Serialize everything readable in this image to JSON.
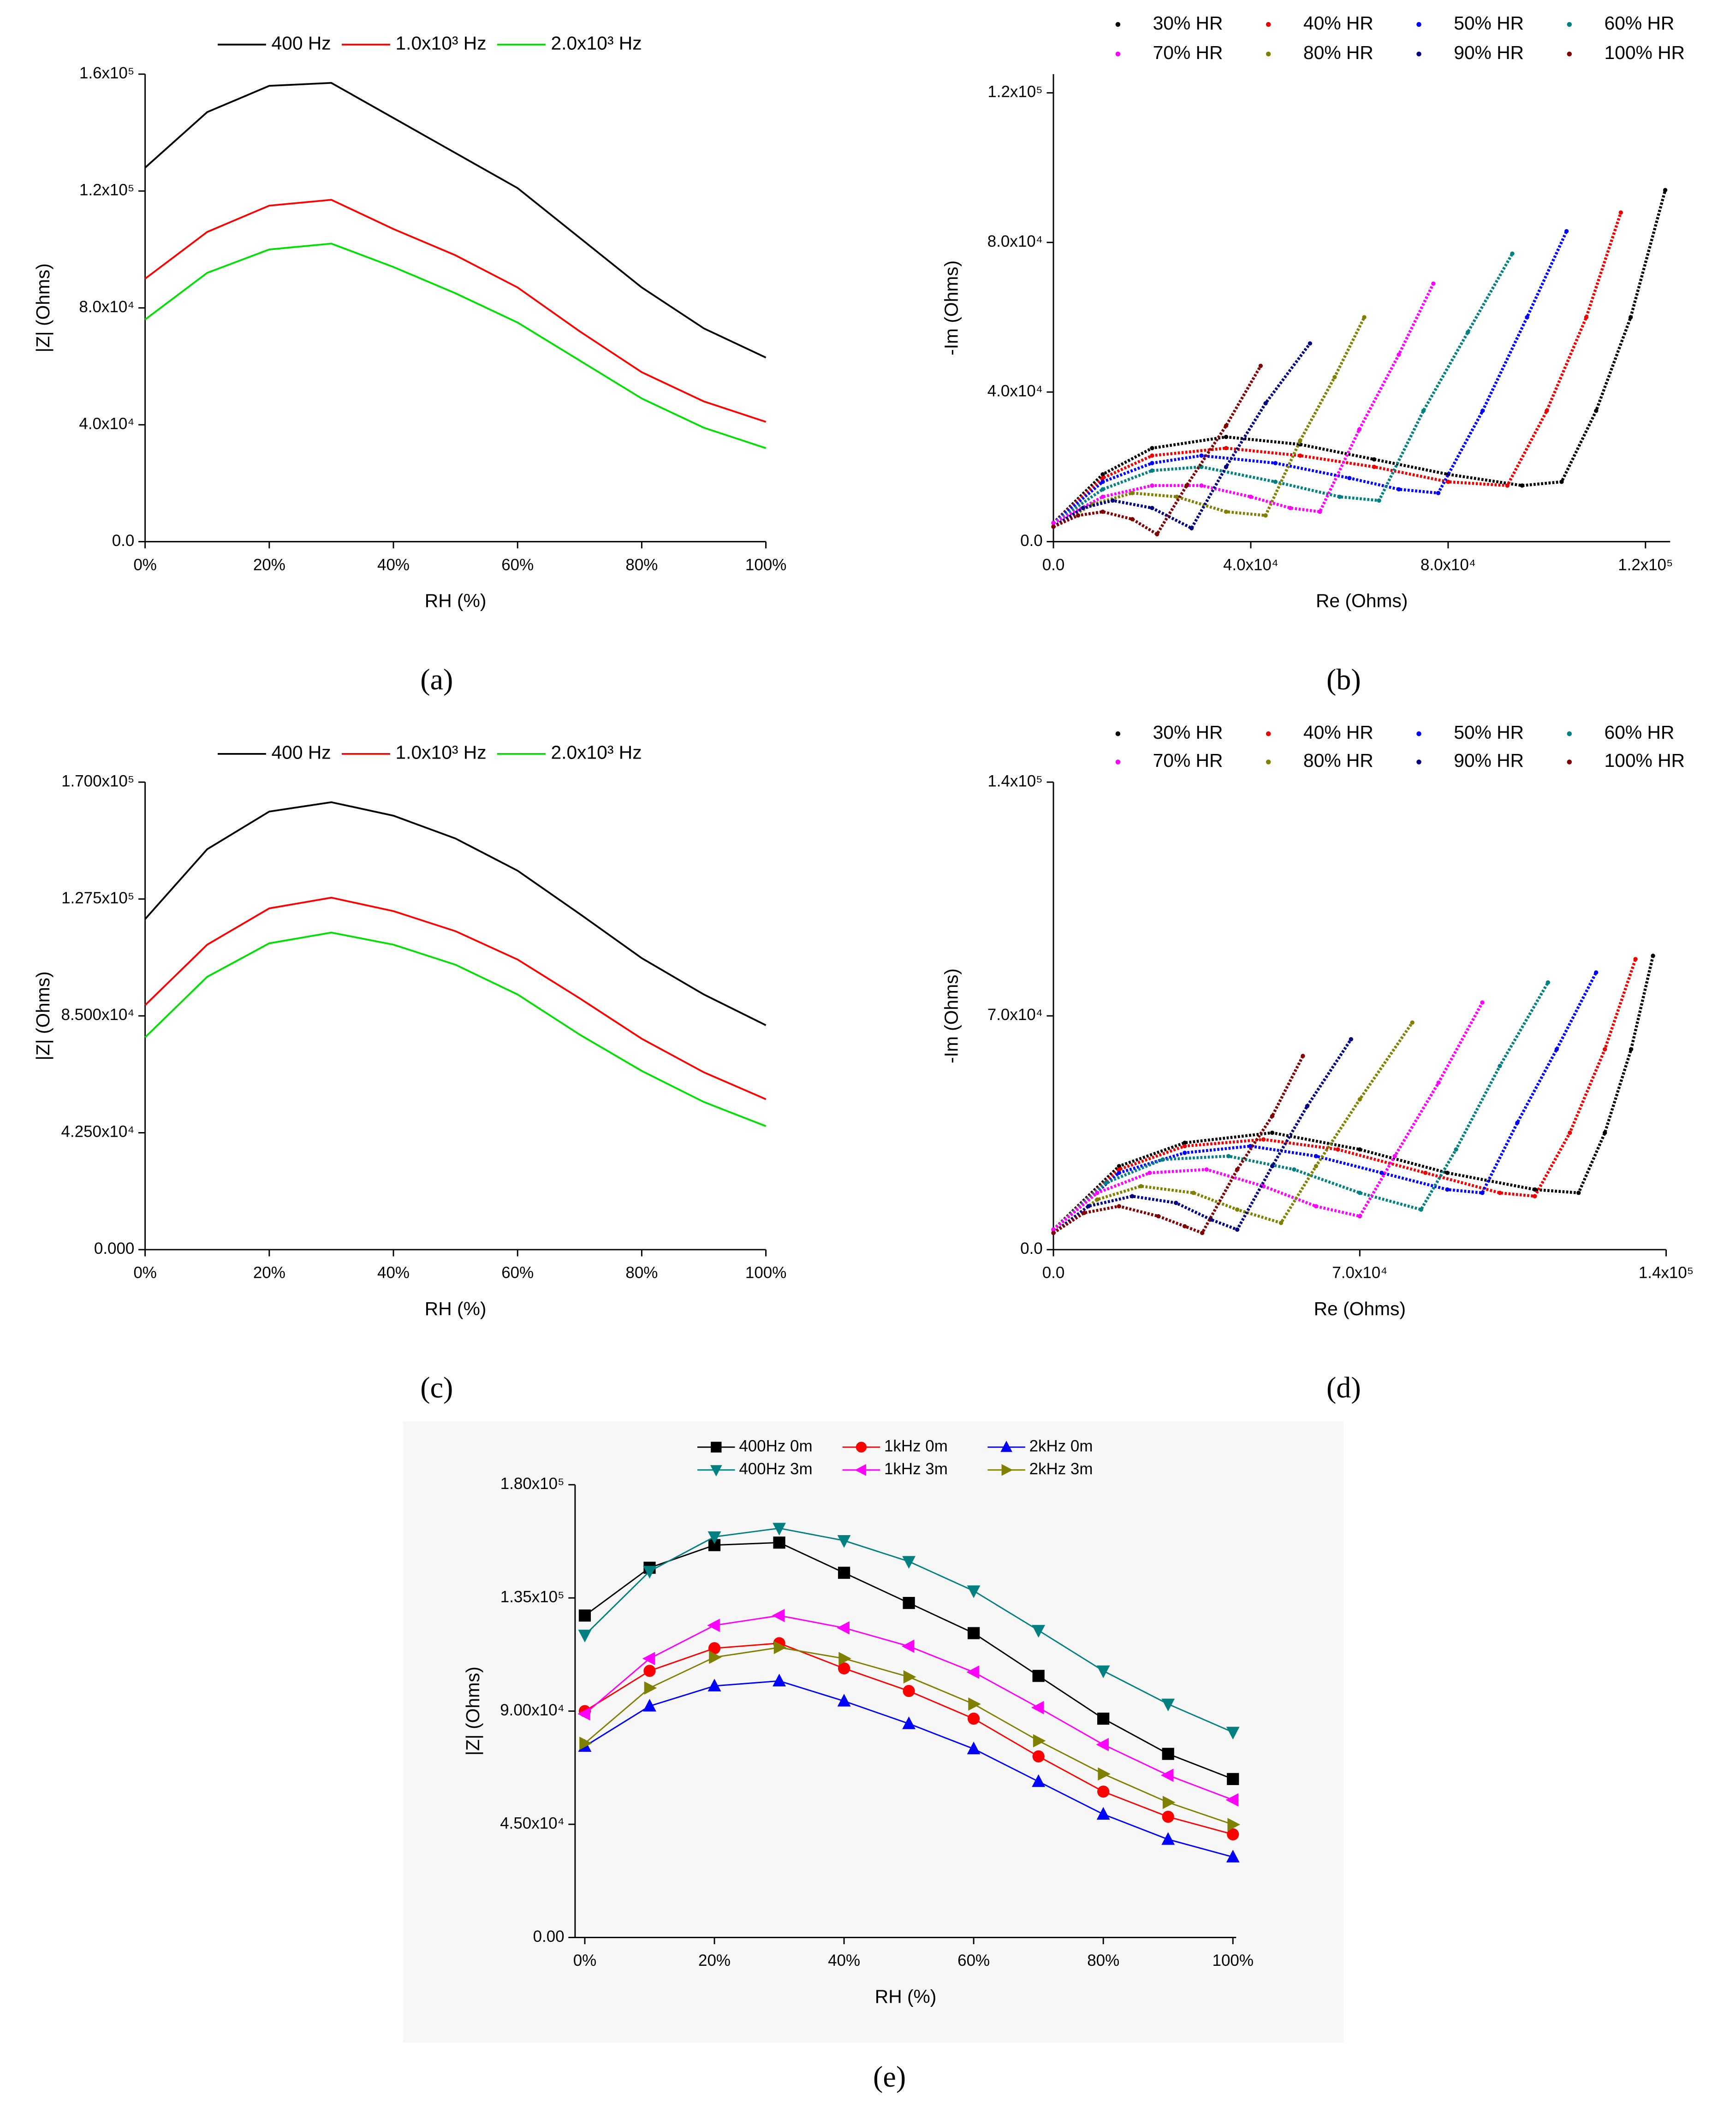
{
  "chart_data": [
    {
      "type": "line",
      "caption": "(a)",
      "x_label": "RH (%)",
      "y_label": "|Z| (Ohms)",
      "x": [
        0,
        10,
        20,
        30,
        40,
        50,
        60,
        70,
        80,
        90,
        100
      ],
      "xlim": [
        0,
        100
      ],
      "ylim": [
        0,
        160000
      ],
      "xticks": [
        {
          "value": 0,
          "label": "0%"
        },
        {
          "value": 20,
          "label": "20%"
        },
        {
          "value": 40,
          "label": "40%"
        },
        {
          "value": 60,
          "label": "60%"
        },
        {
          "value": 80,
          "label": "80%"
        },
        {
          "value": 100,
          "label": "100%"
        }
      ],
      "yticks": [
        {
          "value": 0,
          "label": "0.0"
        },
        {
          "value": 40000,
          "label": "4.0x10⁴"
        },
        {
          "value": 80000,
          "label": "8.0x10⁴"
        },
        {
          "value": 120000,
          "label": "1.2x10⁵"
        },
        {
          "value": 160000,
          "label": "1.6x10⁵"
        }
      ],
      "series": [
        {
          "name": "400 Hz",
          "color": "#000000",
          "values": [
            128000,
            147000,
            156000,
            157000,
            145000,
            133000,
            121000,
            104000,
            87000,
            73000,
            63000
          ]
        },
        {
          "name": "1.0x10³ Hz",
          "color": "#ff0000",
          "values": [
            90000,
            106000,
            115000,
            117000,
            107000,
            98000,
            87000,
            72000,
            58000,
            48000,
            41000
          ]
        },
        {
          "name": "2.0x10³ Hz",
          "color": "#00e000",
          "values": [
            76000,
            92000,
            100000,
            102000,
            94000,
            85000,
            75000,
            62000,
            49000,
            39000,
            32000
          ]
        }
      ]
    },
    {
      "type": "scatter",
      "caption": "(b)",
      "x_label": "Re (Ohms)",
      "y_label": "-Im (Ohms)",
      "xlim": [
        0,
        125000
      ],
      "ylim": [
        0,
        125000
      ],
      "xticks": [
        {
          "value": 0,
          "label": "0.0"
        },
        {
          "value": 40000,
          "label": "4.0x10⁴"
        },
        {
          "value": 80000,
          "label": "8.0x10⁴"
        },
        {
          "value": 120000,
          "label": "1.2x10⁵"
        }
      ],
      "yticks": [
        {
          "value": 0,
          "label": "0.0"
        },
        {
          "value": 40000,
          "label": "4.0x10⁴"
        },
        {
          "value": 80000,
          "label": "8.0x10⁴"
        },
        {
          "value": 120000,
          "label": "1.2x10⁵"
        }
      ],
      "series": [
        {
          "name": "30% HR",
          "color": "#000000",
          "x": [
            0,
            10000,
            20000,
            35000,
            50000,
            65000,
            80000,
            95000,
            103000,
            110000,
            117000,
            124000
          ],
          "values": [
            5000,
            18000,
            25000,
            28000,
            26000,
            22000,
            18000,
            15000,
            16000,
            35000,
            60000,
            94000
          ]
        },
        {
          "name": "40% HR",
          "color": "#ee0000",
          "x": [
            0,
            10000,
            20000,
            35000,
            50000,
            65000,
            80000,
            92000,
            100000,
            108000,
            115000
          ],
          "values": [
            5000,
            17000,
            23000,
            25000,
            23000,
            20000,
            16000,
            15000,
            35000,
            60000,
            88000
          ]
        },
        {
          "name": "50% HR",
          "color": "#0000ff",
          "x": [
            0,
            10000,
            20000,
            30000,
            45000,
            60000,
            70000,
            78000,
            87000,
            96000,
            104000
          ],
          "values": [
            5000,
            16000,
            21000,
            23000,
            21000,
            17000,
            14000,
            13000,
            35000,
            60000,
            83000
          ]
        },
        {
          "name": "60% HR",
          "color": "#008080",
          "x": [
            0,
            10000,
            20000,
            30000,
            45000,
            58000,
            66000,
            75000,
            84000,
            93000
          ],
          "values": [
            5000,
            14000,
            19000,
            20000,
            16000,
            12000,
            11000,
            35000,
            56000,
            77000
          ]
        },
        {
          "name": "70% HR",
          "color": "#ff00ff",
          "x": [
            0,
            10000,
            20000,
            30000,
            40000,
            48000,
            54000,
            62000,
            70000,
            77000
          ],
          "values": [
            5000,
            12000,
            15000,
            15000,
            12000,
            9000,
            8000,
            30000,
            50000,
            69000
          ]
        },
        {
          "name": "80% HR",
          "color": "#808000",
          "x": [
            0,
            8000,
            16000,
            25000,
            35000,
            43000,
            50000,
            57000,
            63000
          ],
          "values": [
            4000,
            10000,
            13000,
            12000,
            8000,
            7000,
            27000,
            44000,
            60000
          ]
        },
        {
          "name": "90% HR",
          "color": "#000080",
          "x": [
            0,
            6000,
            12000,
            20000,
            28000,
            35000,
            43000,
            52000
          ],
          "values": [
            4000,
            9000,
            11000,
            9000,
            3600,
            20000,
            37000,
            53000
          ]
        },
        {
          "name": "100% HR",
          "color": "#800000",
          "x": [
            0,
            5000,
            10000,
            16000,
            21000,
            27000,
            35000,
            42000
          ],
          "values": [
            4000,
            7000,
            8000,
            6000,
            2000,
            15000,
            31000,
            47000
          ]
        }
      ]
    },
    {
      "type": "line",
      "caption": "(c)",
      "x_label": "RH (%)",
      "y_label": "|Z| (Ohms)",
      "x": [
        0,
        10,
        20,
        30,
        40,
        50,
        60,
        70,
        80,
        90,
        100
      ],
      "xlim": [
        0,
        100
      ],
      "ylim": [
        0,
        170000
      ],
      "xticks": [
        {
          "value": 0,
          "label": "0%"
        },
        {
          "value": 20,
          "label": "20%"
        },
        {
          "value": 40,
          "label": "40%"
        },
        {
          "value": 60,
          "label": "60%"
        },
        {
          "value": 80,
          "label": "80%"
        },
        {
          "value": 100,
          "label": "100%"
        }
      ],
      "yticks": [
        {
          "value": 0,
          "label": "0.000"
        },
        {
          "value": 42500,
          "label": "4.250x10⁴"
        },
        {
          "value": 85000,
          "label": "8.500x10⁴"
        },
        {
          "value": 127500,
          "label": "1.275x10⁵"
        },
        {
          "value": 170000,
          "label": "1.700x10⁵"
        }
      ],
      "series": [
        {
          "name": "400 Hz",
          "color": "#000000",
          "values": [
            120200,
            145600,
            159300,
            162700,
            157800,
            149500,
            137800,
            122100,
            106000,
            92800,
            81600
          ]
        },
        {
          "name": "1.0x10³ Hz",
          "color": "#ff0000",
          "values": [
            88900,
            110900,
            124100,
            128000,
            123100,
            115800,
            105500,
            91400,
            76700,
            64500,
            54700
          ]
        },
        {
          "name": "2.0x10³ Hz",
          "color": "#00e000",
          "values": [
            77200,
            99200,
            111400,
            115300,
            110900,
            103600,
            92800,
            78200,
            65000,
            53700,
            44900
          ]
        }
      ]
    },
    {
      "type": "scatter",
      "caption": "(d)",
      "x_label": "Re (Ohms)",
      "y_label": "-Im (Ohms)",
      "xlim": [
        0,
        140000
      ],
      "ylim": [
        0,
        140000
      ],
      "xticks": [
        {
          "value": 0,
          "label": "0.0"
        },
        {
          "value": 70000,
          "label": "7.0x10⁴"
        },
        {
          "value": 140000,
          "label": "1.4x10⁵"
        }
      ],
      "yticks": [
        {
          "value": 0,
          "label": "0.0"
        },
        {
          "value": 70000,
          "label": "7.0x10⁴"
        },
        {
          "value": 140000,
          "label": "1.4x10⁵"
        }
      ],
      "series": [
        {
          "name": "30% HR",
          "color": "#000000",
          "x": [
            0,
            15000,
            30000,
            50000,
            70000,
            90000,
            110000,
            120000,
            126000,
            132000,
            137000
          ],
          "values": [
            6000,
            25000,
            32000,
            35000,
            30000,
            23000,
            18000,
            17000,
            35000,
            60000,
            88000
          ]
        },
        {
          "name": "40% HR",
          "color": "#ee0000",
          "x": [
            0,
            15000,
            30000,
            48000,
            65000,
            85000,
            102000,
            110000,
            118000,
            126000,
            133000
          ],
          "values": [
            6000,
            24000,
            31000,
            33000,
            30000,
            23000,
            17000,
            16000,
            35000,
            60000,
            87000
          ]
        },
        {
          "name": "50% HR",
          "color": "#0000ff",
          "x": [
            0,
            15000,
            30000,
            45000,
            60000,
            75000,
            90000,
            98000,
            106000,
            115000,
            124000
          ],
          "values": [
            6000,
            23000,
            29000,
            31000,
            28000,
            23000,
            18000,
            17000,
            38000,
            60000,
            83000
          ]
        },
        {
          "name": "60% HR",
          "color": "#008080",
          "x": [
            0,
            12000,
            25000,
            40000,
            55000,
            70000,
            84000,
            92000,
            102000,
            113000
          ],
          "values": [
            6000,
            20000,
            27000,
            28000,
            24000,
            17000,
            12000,
            30000,
            55000,
            80000
          ]
        },
        {
          "name": "70% HR",
          "color": "#ff00ff",
          "x": [
            0,
            10000,
            22000,
            35000,
            48000,
            60000,
            70000,
            78000,
            88000,
            98000
          ],
          "values": [
            6000,
            17000,
            23000,
            24000,
            19000,
            13000,
            10000,
            28000,
            50000,
            74000
          ]
        },
        {
          "name": "80% HR",
          "color": "#808000",
          "x": [
            0,
            10000,
            20000,
            32000,
            42000,
            52000,
            60000,
            70000,
            82000
          ],
          "values": [
            5000,
            15000,
            19000,
            17000,
            12000,
            8000,
            25000,
            45000,
            68000
          ]
        },
        {
          "name": "90% HR",
          "color": "#000080",
          "x": [
            0,
            8000,
            18000,
            28000,
            36000,
            42000,
            50000,
            58000,
            68000
          ],
          "values": [
            5000,
            13000,
            16000,
            14000,
            9000,
            6000,
            25000,
            43000,
            63000
          ]
        },
        {
          "name": "100% HR",
          "color": "#800000",
          "x": [
            0,
            7000,
            15000,
            24000,
            30000,
            34000,
            42000,
            50000,
            57000
          ],
          "values": [
            5000,
            11000,
            13000,
            10000,
            7000,
            5000,
            24000,
            40000,
            58000
          ]
        }
      ]
    },
    {
      "type": "line",
      "caption": "(e)",
      "x_label": "RH (%)",
      "y_label": "|Z| (Ohms)",
      "x": [
        0,
        10,
        20,
        30,
        40,
        50,
        60,
        70,
        80,
        90,
        100
      ],
      "xlim": [
        -1.5,
        100.5
      ],
      "ylim": [
        0,
        180000
      ],
      "xticks": [
        {
          "value": 0,
          "label": "0%"
        },
        {
          "value": 20,
          "label": "20%"
        },
        {
          "value": 40,
          "label": "40%"
        },
        {
          "value": 60,
          "label": "60%"
        },
        {
          "value": 80,
          "label": "80%"
        },
        {
          "value": 100,
          "label": "100%"
        }
      ],
      "yticks": [
        {
          "value": 0,
          "label": "0.00"
        },
        {
          "value": 45000,
          "label": "4.50x10⁴"
        },
        {
          "value": 90000,
          "label": "9.00x10⁴"
        },
        {
          "value": 135000,
          "label": "1.35x10⁵"
        },
        {
          "value": 180000,
          "label": "1.80x10⁵"
        }
      ],
      "series": [
        {
          "name": "400Hz 0m",
          "color": "#000000",
          "marker": "square",
          "values": [
            128000,
            147000,
            156000,
            157000,
            145000,
            133000,
            121000,
            104000,
            87000,
            73000,
            63000
          ]
        },
        {
          "name": "1kHz 0m",
          "color": "#ff0000",
          "marker": "circle",
          "values": [
            90000,
            106000,
            115000,
            117000,
            107000,
            98000,
            87000,
            72000,
            58000,
            48000,
            41000
          ]
        },
        {
          "name": "2kHz 0m",
          "color": "#0000ff",
          "marker": "triangle-up",
          "values": [
            76000,
            92000,
            100000,
            102000,
            94000,
            85000,
            75000,
            62000,
            49000,
            39000,
            32000
          ]
        },
        {
          "name": "400Hz 3m",
          "color": "#008080",
          "marker": "triangle-down",
          "values": [
            120200,
            145600,
            159300,
            162700,
            157800,
            149500,
            137800,
            122100,
            106000,
            92800,
            81600
          ]
        },
        {
          "name": "1kHz 3m",
          "color": "#ff00ff",
          "marker": "triangle-left",
          "values": [
            88900,
            110900,
            124100,
            128000,
            123100,
            115800,
            105500,
            91400,
            76700,
            64500,
            54700
          ]
        },
        {
          "name": "2kHz 3m",
          "color": "#808000",
          "marker": "triangle-right",
          "values": [
            77200,
            99200,
            111400,
            115300,
            110900,
            103600,
            92800,
            78200,
            65000,
            53700,
            44900
          ]
        }
      ]
    }
  ]
}
